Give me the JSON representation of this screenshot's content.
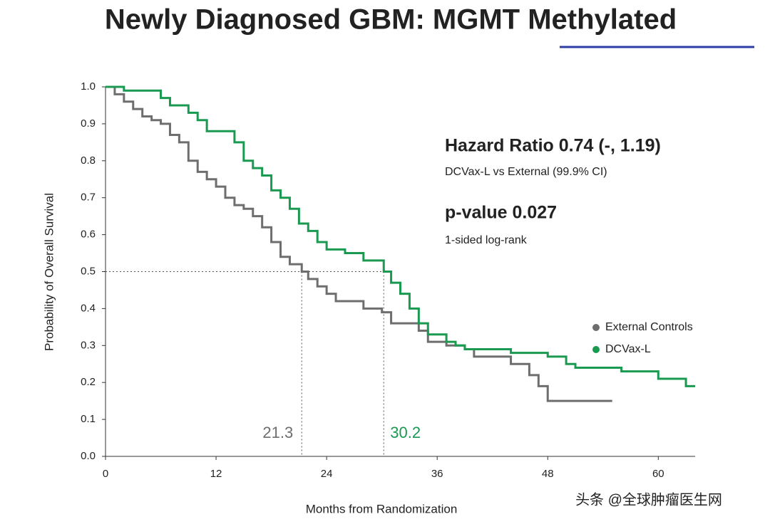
{
  "chart_data": {
    "type": "step",
    "title": "Newly Diagnosed GBM:  MGMT Methylated",
    "x_label": "Months from Randomization",
    "y_label": "Probability of Overall Survival",
    "xlim": [
      0,
      64
    ],
    "ylim": [
      0,
      1
    ],
    "xticks": [
      0,
      12,
      24,
      36,
      48,
      60
    ],
    "yticks": [
      {
        "value": 0,
        "label": "0.0"
      },
      0.1,
      0.2,
      0.3,
      0.4,
      0.5,
      0.6,
      0.7,
      0.8,
      0.9,
      {
        "value": 1,
        "label": "1.0"
      }
    ],
    "legend": "right",
    "series": [
      {
        "name": "External Controls",
        "color": "#6e6e6e",
        "x": [
          0,
          1,
          2,
          3,
          4,
          5,
          6,
          7,
          8,
          9,
          10,
          11,
          12,
          13,
          14,
          15,
          16,
          17,
          18,
          19,
          20,
          21.3,
          22,
          23,
          24,
          25,
          28,
          30,
          31,
          34,
          35,
          37,
          39,
          40,
          44,
          46,
          47,
          48,
          55
        ],
        "values": [
          1.0,
          0.98,
          0.96,
          0.94,
          0.92,
          0.91,
          0.9,
          0.87,
          0.85,
          0.8,
          0.77,
          0.75,
          0.73,
          0.7,
          0.68,
          0.67,
          0.65,
          0.62,
          0.58,
          0.54,
          0.52,
          0.5,
          0.48,
          0.46,
          0.44,
          0.42,
          0.4,
          0.39,
          0.36,
          0.34,
          0.31,
          0.3,
          0.29,
          0.27,
          0.25,
          0.22,
          0.19,
          0.15,
          0.15
        ]
      },
      {
        "name": "DCVax-L",
        "color": "#1a9a50",
        "x": [
          0,
          2,
          6,
          7,
          9,
          10,
          11,
          14,
          15,
          16,
          17,
          18,
          19,
          20,
          21,
          22,
          23,
          24,
          26,
          28,
          30.2,
          31,
          32,
          33,
          34,
          35,
          37,
          38,
          39,
          44,
          48,
          50,
          51,
          56,
          60,
          63,
          64
        ],
        "values": [
          1.0,
          0.99,
          0.97,
          0.95,
          0.93,
          0.91,
          0.88,
          0.85,
          0.8,
          0.78,
          0.76,
          0.72,
          0.7,
          0.67,
          0.63,
          0.61,
          0.58,
          0.56,
          0.55,
          0.53,
          0.5,
          0.47,
          0.44,
          0.4,
          0.36,
          0.33,
          0.31,
          0.3,
          0.29,
          0.28,
          0.27,
          0.25,
          0.24,
          0.23,
          0.21,
          0.19,
          0.19
        ]
      }
    ],
    "median_survival": 0.5,
    "medians": [
      21.3,
      30.2
    ],
    "annotations": [
      "Hazard Ratio 0.74 (-, 1.19)",
      "DCVax-L vs External (99.9% CI)",
      "p-value 0.027",
      "1-sided log-rank"
    ],
    "watermark": "头条 @全球肿瘤医生网"
  }
}
